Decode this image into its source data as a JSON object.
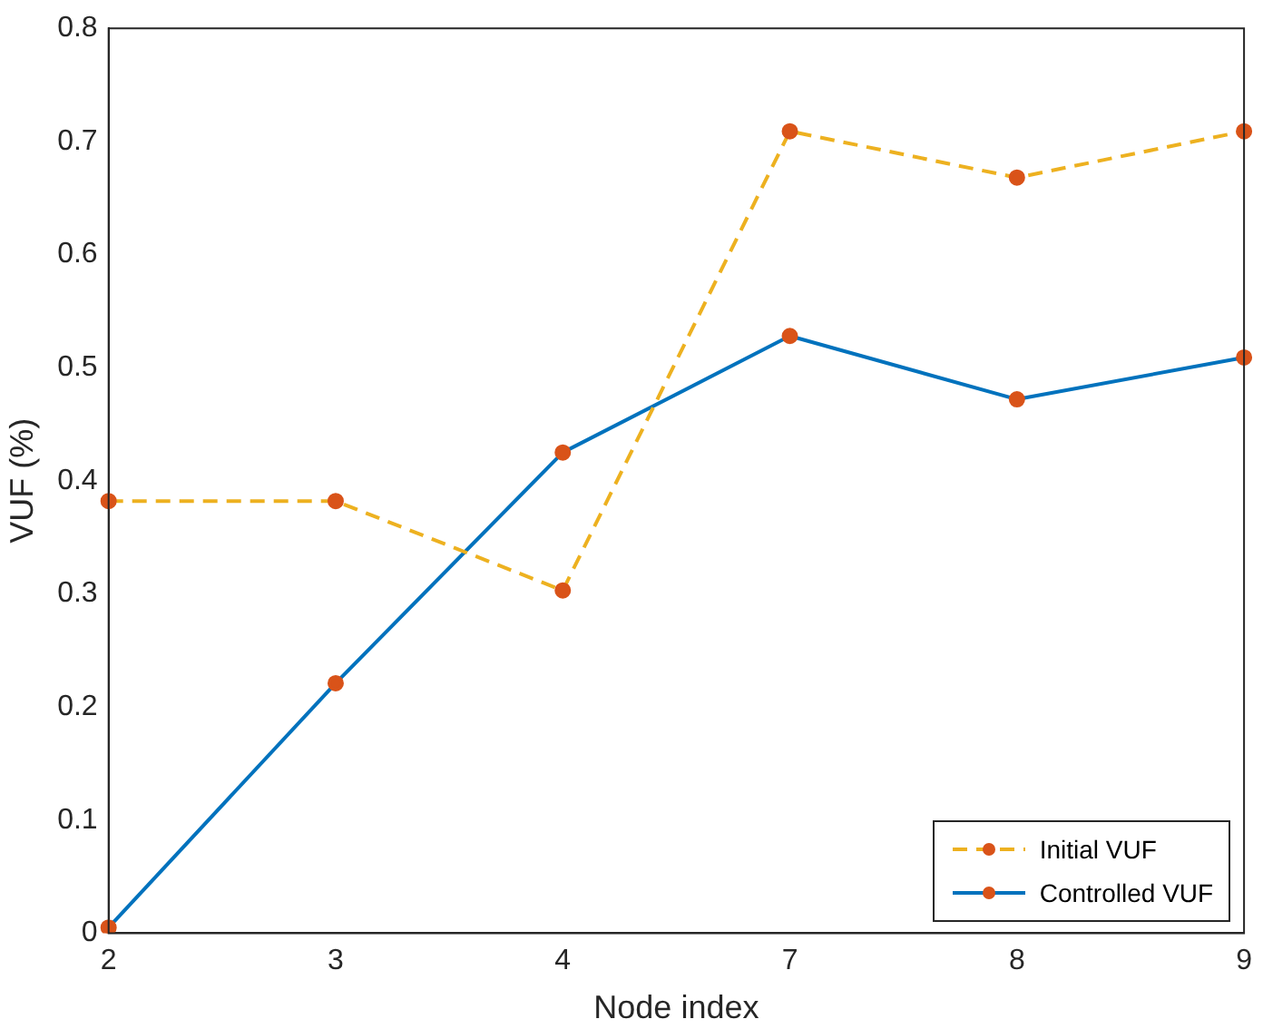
{
  "chart_data": {
    "type": "line",
    "xlabel": "Node index",
    "ylabel": "VUF (%)",
    "categories": [
      "2",
      "3",
      "4",
      "7",
      "8",
      "9"
    ],
    "series": [
      {
        "name": "Initial VUF",
        "color": "#edb120",
        "colors": [
          "#d95319",
          "#d95319",
          "#d95319",
          "#d95319",
          "#d95319",
          "#d95319"
        ],
        "line_style": "dashed",
        "values": [
          0.382,
          0.382,
          0.303,
          0.709,
          0.668,
          0.709
        ]
      },
      {
        "name": "Controlled VUF",
        "color": "#0072bd",
        "colors": [
          "#d95319",
          "#d95319",
          "#d95319",
          "#d95319",
          "#d95319",
          "#d95319"
        ],
        "line_style": "solid",
        "values": [
          0.005,
          0.221,
          0.425,
          0.528,
          0.472,
          0.509
        ]
      }
    ],
    "ylim": [
      0,
      0.8
    ],
    "yticks": [
      0,
      0.1,
      0.2,
      0.3,
      0.4,
      0.5,
      0.6,
      0.7,
      0.8
    ],
    "grid": false,
    "legend": "bottom right",
    "marker": "circle"
  }
}
